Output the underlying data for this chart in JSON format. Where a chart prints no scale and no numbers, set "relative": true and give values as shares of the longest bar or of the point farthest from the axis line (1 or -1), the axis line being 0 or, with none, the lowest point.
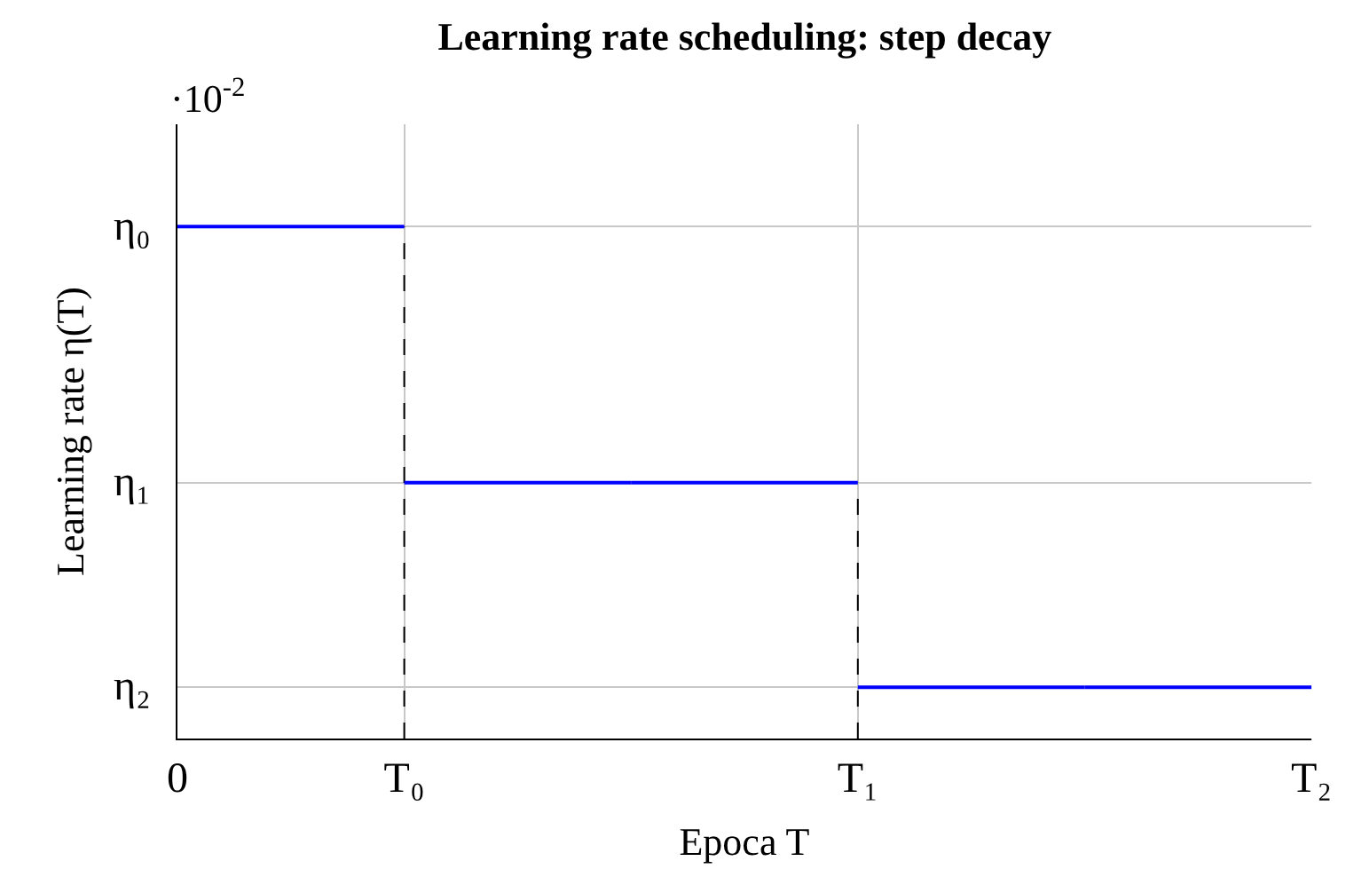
{
  "chart_data": {
    "type": "step",
    "title": "Learning rate scheduling: step decay",
    "xlabel": "Epoca T",
    "ylabel": "Learning rate η(T)",
    "annotations": [
      "·10$^{-2}$",
      "η₀",
      "η₁",
      "η₂"
    ],
    "categories": [
      "0",
      "T₀",
      null,
      "T₁",
      null,
      "T₂"
    ],
    "relative": true,
    "series": [
      {
        "color": "#0000ff",
        "values": [
          1,
          0.5,
          0.5,
          0.1,
          0.1,
          0.1
        ]
      }
    ],
    "ref_lines": [
      {
        "axis": "x",
        "value": "T₀",
        "color": "#000000",
        "line_style": "dashed"
      },
      {
        "axis": "x",
        "value": "T₁",
        "color": "#000000",
        "line_style": "dashed"
      }
    ],
    "grid": true
  }
}
